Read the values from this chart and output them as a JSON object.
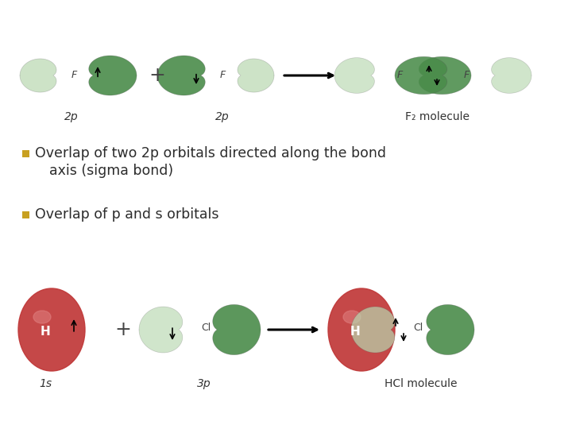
{
  "bg_color": "#ffffff",
  "bullet_color": "#c8a020",
  "text_color": "#2c2c2c",
  "green_dark": "#4a8c4a",
  "green_light": "#b8d8b0",
  "green_mid": "#6aaa6a",
  "red_dark": "#c03838",
  "red_light": "#e07070",
  "bullet1_line1": "Overlap of two 2p orbitals directed along the bond",
  "bullet1_line2": "axis (sigma bond)",
  "bullet2": "Overlap of p and s orbitals",
  "label_2p_1": "2p",
  "label_2p_2": "2p",
  "label_F2": "F₂ molecule",
  "label_1s": "1s",
  "label_3p": "3p",
  "label_HCl": "HCl molecule",
  "label_F": "F",
  "label_Cl": "Cl",
  "label_H": "H"
}
